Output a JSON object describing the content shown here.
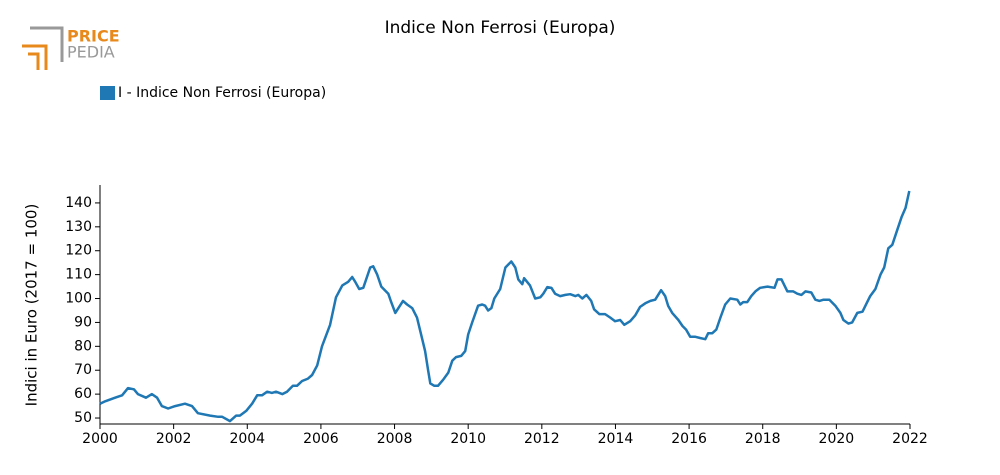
{
  "logo": {
    "top": "PRICE",
    "bottom": "PEDIA"
  },
  "chart_data": {
    "type": "line",
    "title": "Indice Non Ferrosi (Europa)",
    "y_label": "Indici in Euro (2017 = 100)",
    "xlim": [
      2000,
      2022
    ],
    "xticks": [
      2000,
      2002,
      2004,
      2006,
      2008,
      2010,
      2012,
      2014,
      2016,
      2018,
      2020,
      2022
    ],
    "ylim": [
      47.5,
      147.5
    ],
    "yticks": [
      50,
      60,
      70,
      80,
      90,
      100,
      110,
      120,
      130,
      140
    ],
    "legend": "top-left",
    "x": [
      2000.0,
      2000.14,
      2000.41,
      2000.6,
      2000.76,
      2000.92,
      2001.03,
      2001.25,
      2001.41,
      2001.55,
      2001.68,
      2001.85,
      2002.04,
      2002.31,
      2002.5,
      2002.66,
      2002.99,
      2003.21,
      2003.32,
      2003.53,
      2003.7,
      2003.8,
      2003.97,
      2004.13,
      2004.27,
      2004.4,
      2004.54,
      2004.67,
      2004.78,
      2004.95,
      2005.08,
      2005.24,
      2005.35,
      2005.49,
      2005.65,
      2005.76,
      2005.9,
      2006.03,
      2006.25,
      2006.41,
      2006.58,
      2006.74,
      2006.85,
      2006.93,
      2007.04,
      2007.15,
      2007.34,
      2007.42,
      2007.53,
      2007.64,
      2007.83,
      2007.91,
      2008.02,
      2008.23,
      2008.34,
      2008.48,
      2008.61,
      2008.72,
      2008.83,
      2008.91,
      2008.97,
      2009.08,
      2009.18,
      2009.32,
      2009.46,
      2009.57,
      2009.67,
      2009.81,
      2009.92,
      2010.0,
      2010.11,
      2010.27,
      2010.38,
      2010.46,
      2010.54,
      2010.63,
      2010.71,
      2010.87,
      2011.01,
      2011.17,
      2011.28,
      2011.36,
      2011.47,
      2011.52,
      2011.68,
      2011.82,
      2011.96,
      2012.04,
      2012.15,
      2012.26,
      2012.36,
      2012.5,
      2012.64,
      2012.77,
      2012.91,
      2012.99,
      2013.1,
      2013.21,
      2013.34,
      2013.42,
      2013.56,
      2013.72,
      2013.86,
      2013.99,
      2014.13,
      2014.24,
      2014.4,
      2014.54,
      2014.67,
      2014.81,
      2014.95,
      2015.08,
      2015.24,
      2015.35,
      2015.43,
      2015.54,
      2015.71,
      2015.82,
      2015.92,
      2016.03,
      2016.17,
      2016.3,
      2016.44,
      2016.52,
      2016.63,
      2016.74,
      2016.85,
      2016.98,
      2017.12,
      2017.31,
      2017.39,
      2017.47,
      2017.58,
      2017.69,
      2017.8,
      2017.93,
      2018.13,
      2018.32,
      2018.4,
      2018.51,
      2018.67,
      2018.83,
      2018.94,
      2019.05,
      2019.16,
      2019.32,
      2019.43,
      2019.54,
      2019.65,
      2019.81,
      2019.97,
      2020.11,
      2020.19,
      2020.33,
      2020.43,
      2020.57,
      2020.71,
      2020.82,
      2020.92,
      2021.06,
      2021.2,
      2021.3,
      2021.41,
      2021.52,
      2021.66,
      2021.77,
      2021.88,
      2021.98
    ],
    "series": [
      {
        "name": "I - Indice Non Ferrosi (Europa)",
        "color": "#1f77b4",
        "values": [
          56,
          57,
          58.5,
          59.5,
          62.5,
          62,
          60,
          58.5,
          60,
          58.5,
          55,
          54,
          55,
          56,
          55,
          52,
          51,
          50.5,
          50.5,
          48.7,
          51,
          51,
          53,
          56,
          59.5,
          59.5,
          61,
          60.5,
          61,
          60,
          61,
          63.5,
          63.5,
          65.5,
          66.5,
          68,
          72,
          80,
          89,
          100.5,
          105.5,
          107,
          109,
          107,
          104,
          104.5,
          113,
          113.5,
          110,
          105,
          102,
          98.5,
          94,
          99,
          97.5,
          96,
          92,
          85,
          78,
          70,
          64.5,
          63.5,
          63.5,
          66,
          69,
          74,
          75.5,
          76,
          78,
          85,
          90,
          97,
          97.5,
          97,
          95,
          96,
          100,
          104,
          113,
          115.5,
          113,
          108,
          106,
          108.5,
          105.5,
          100,
          100.5,
          102,
          104.8,
          104.5,
          102,
          101,
          101.5,
          101.8,
          101,
          101.5,
          100,
          101.5,
          99,
          95.5,
          93.5,
          93.5,
          92,
          90.5,
          91,
          89,
          90.5,
          93,
          96.5,
          98,
          99,
          99.5,
          103.5,
          101,
          97,
          94,
          91,
          88.5,
          87,
          84,
          84,
          83.5,
          83,
          85.5,
          85.5,
          87,
          92,
          97.5,
          100,
          99.5,
          97.5,
          98.5,
          98.5,
          101,
          103,
          104.5,
          105,
          104.5,
          108,
          108,
          103,
          103,
          102,
          101.5,
          103,
          102.5,
          99.5,
          99,
          99.5,
          99.5,
          97,
          94,
          91,
          89.5,
          90,
          94,
          94.5,
          98,
          101,
          104,
          110,
          113,
          121,
          122.5,
          129,
          134,
          138,
          145
        ]
      }
    ]
  }
}
